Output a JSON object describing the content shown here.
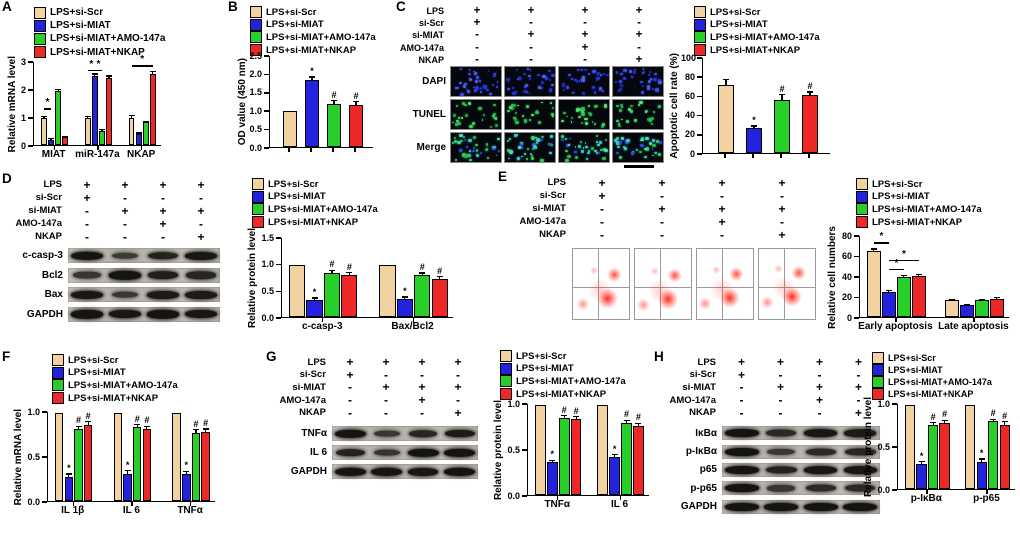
{
  "labels": {
    "a": "A",
    "b": "B",
    "c": "C",
    "d": "D",
    "e": "E",
    "f": "F",
    "g": "G",
    "h": "H"
  },
  "groups": [
    {
      "label": "LPS+si-Scr",
      "color": "#f2d2a0"
    },
    {
      "label": "LPS+si-MIAT",
      "color": "#2323dd"
    },
    {
      "label": "LPS+si-MIAT+AMO-147a",
      "color": "#28cf28"
    },
    {
      "label": "LPS+si-MIAT+NKAP",
      "color": "#ee2727"
    }
  ],
  "treatment": {
    "rows": [
      {
        "label": "LPS",
        "signs": [
          "+",
          "+",
          "+",
          "+"
        ]
      },
      {
        "label": "si-Scr",
        "signs": [
          "+",
          "-",
          "-",
          "-"
        ]
      },
      {
        "label": "si-MIAT",
        "signs": [
          "-",
          "+",
          "+",
          "+"
        ]
      },
      {
        "label": "AMO-147a",
        "signs": [
          "-",
          "-",
          "+",
          "-"
        ]
      },
      {
        "label": "NKAP",
        "signs": [
          "-",
          "-",
          "-",
          "+"
        ]
      }
    ]
  },
  "microscopy": {
    "row_labels": [
      "DAPI",
      "TUNEL",
      "Merge"
    ],
    "palettes": [
      [
        "#2436e0",
        "#3a4cf0",
        "#1b2cba",
        "#4d5ef2"
      ],
      [
        "#27c24b",
        "#39d95f",
        "#1ea83e",
        "#52e676"
      ],
      [
        "#35d058",
        "#2fd0c8",
        "#3347e8",
        "#45e0c8",
        "#28b84c"
      ]
    ],
    "dot_counts": [
      32,
      24,
      36
    ]
  },
  "flow": {
    "color": "#ff2a1e",
    "plot_count": 4
  },
  "blots": {
    "d": {
      "rows": [
        {
          "label": "c-casp-3",
          "lane_intensities": [
            1,
            0.45,
            0.8,
            0.95
          ]
        },
        {
          "label": "Bcl2",
          "lane_intensities": [
            0.55,
            1,
            0.85,
            0.75
          ]
        },
        {
          "label": "Bax",
          "lane_intensities": [
            0.95,
            0.5,
            0.9,
            0.9
          ]
        },
        {
          "label": "GAPDH",
          "lane_intensities": [
            1,
            0.95,
            1,
            0.95
          ]
        }
      ]
    },
    "g": {
      "rows": [
        {
          "label": "TNFα",
          "lane_intensities": [
            1,
            0.5,
            0.75,
            0.9
          ]
        },
        {
          "label": "IL 6",
          "lane_intensities": [
            0.8,
            0.55,
            1,
            1
          ]
        },
        {
          "label": "GAPDH",
          "lane_intensities": [
            1,
            1,
            0.95,
            1
          ]
        }
      ]
    },
    "h": {
      "rows": [
        {
          "label": "IκBα",
          "lane_intensities": [
            1,
            0.7,
            0.95,
            0.9
          ]
        },
        {
          "label": "p-IκBα",
          "lane_intensities": [
            1,
            0.5,
            0.7,
            0.75
          ]
        },
        {
          "label": "p65",
          "lane_intensities": [
            1,
            0.8,
            0.95,
            0.95
          ]
        },
        {
          "label": "p-p65",
          "lane_intensities": [
            1,
            0.5,
            0.7,
            0.7
          ]
        },
        {
          "label": "GAPDH",
          "lane_intensities": [
            1,
            1,
            1,
            1
          ]
        }
      ]
    }
  },
  "chart_data": [
    {
      "id": "A",
      "type": "bar",
      "title": "",
      "ylabel": "Relative mRNA level",
      "xlabel": "",
      "ylim": [
        0,
        3
      ],
      "yticks": [
        "0",
        "1",
        "2",
        "3"
      ],
      "categories": [
        "MIAT",
        "miR-147a",
        "NKAP"
      ],
      "series": [
        {
          "name": "LPS+si-Scr",
          "values": [
            1.0,
            1.0,
            1.0
          ],
          "errors": [
            0.06,
            0.05,
            0.08
          ],
          "ann": [
            "",
            "",
            ""
          ]
        },
        {
          "name": "LPS+si-MIAT",
          "values": [
            0.2,
            2.5,
            0.4
          ],
          "errors": [
            0.04,
            0.1,
            0.05
          ],
          "ann": [
            "",
            "",
            ""
          ]
        },
        {
          "name": "LPS+si-MIAT+AMO-147a",
          "values": [
            1.95,
            0.52,
            0.82
          ],
          "errors": [
            0.08,
            0.05,
            0.05
          ],
          "ann": [
            "",
            "",
            ""
          ]
        },
        {
          "name": "LPS+si-MIAT+NKAP",
          "values": [
            0.28,
            2.45,
            2.6
          ],
          "errors": [
            0.05,
            0.08,
            0.1
          ],
          "ann": [
            "",
            "",
            ""
          ]
        }
      ],
      "brackets": [
        {
          "cat": 0,
          "from": 0,
          "to": 1,
          "y": 1.35,
          "label": "*"
        },
        {
          "cat": 1,
          "from": 0,
          "to": 1,
          "y": 2.72,
          "label": "*"
        },
        {
          "cat": 1,
          "from": 1,
          "to": 2,
          "y": 2.72,
          "label": "*"
        },
        {
          "cat": 2,
          "from": 0,
          "to": 3,
          "y": 2.88,
          "label": "*"
        }
      ]
    },
    {
      "id": "B",
      "type": "bar",
      "title": "",
      "ylabel": "OD value (450 nm)",
      "xlabel": "",
      "ylim": [
        0,
        2.5
      ],
      "yticks": [
        "0.0",
        "0.5",
        "1.0",
        "1.5",
        "2.0",
        "2.5"
      ],
      "categories": [
        ""
      ],
      "series": [
        {
          "name": "LPS+si-Scr",
          "values": [
            1.0
          ],
          "errors": [
            0
          ],
          "ann": [
            ""
          ]
        },
        {
          "name": "LPS+si-MIAT",
          "values": [
            1.85
          ],
          "errors": [
            0.1
          ],
          "ann": [
            "*"
          ]
        },
        {
          "name": "LPS+si-MIAT+AMO-147a",
          "values": [
            1.2
          ],
          "errors": [
            0.09
          ],
          "ann": [
            "#"
          ]
        },
        {
          "name": "LPS+si-MIAT+NKAP",
          "values": [
            1.15
          ],
          "errors": [
            0.12
          ],
          "ann": [
            "#"
          ]
        }
      ]
    },
    {
      "id": "C",
      "type": "bar",
      "title": "",
      "ylabel": "Apoptotic cell rate (%)",
      "xlabel": "",
      "ylim": [
        0,
        100
      ],
      "yticks": [
        "0",
        "20",
        "40",
        "60",
        "80",
        "100"
      ],
      "categories": [
        ""
      ],
      "series": [
        {
          "name": "LPS+si-Scr",
          "values": [
            72
          ],
          "errors": [
            6
          ],
          "ann": [
            ""
          ]
        },
        {
          "name": "LPS+si-MIAT",
          "values": [
            26
          ],
          "errors": [
            3
          ],
          "ann": [
            "*"
          ]
        },
        {
          "name": "LPS+si-MIAT+AMO-147a",
          "values": [
            56
          ],
          "errors": [
            6
          ],
          "ann": [
            "#"
          ]
        },
        {
          "name": "LPS+si-MIAT+NKAP",
          "values": [
            61
          ],
          "errors": [
            4
          ],
          "ann": [
            "#"
          ]
        }
      ]
    },
    {
      "id": "D",
      "type": "bar",
      "title": "",
      "ylabel": "Relative protein level",
      "xlabel": "",
      "ylim": [
        0,
        1.5
      ],
      "yticks": [
        "0.0",
        "0.5",
        "1.0",
        "1.5"
      ],
      "categories": [
        "c-casp-3",
        "Bax/Bcl2"
      ],
      "series": [
        {
          "name": "LPS+si-Scr",
          "values": [
            1.0,
            1.0
          ],
          "errors": [
            0,
            0
          ],
          "ann": [
            "",
            ""
          ]
        },
        {
          "name": "LPS+si-MIAT",
          "values": [
            0.32,
            0.35
          ],
          "errors": [
            0.05,
            0.04
          ],
          "ann": [
            "*",
            "*"
          ]
        },
        {
          "name": "LPS+si-MIAT+AMO-147a",
          "values": [
            0.85,
            0.8
          ],
          "errors": [
            0.05,
            0.05
          ],
          "ann": [
            "#",
            "#"
          ]
        },
        {
          "name": "LPS+si-MIAT+NKAP",
          "values": [
            0.8,
            0.73
          ],
          "errors": [
            0.06,
            0.05
          ],
          "ann": [
            "#",
            "#"
          ]
        }
      ]
    },
    {
      "id": "E",
      "type": "bar",
      "title": "",
      "ylabel": "Relative cell numbers",
      "xlabel": "",
      "ylim": [
        0,
        80
      ],
      "yticks": [
        "0",
        "20",
        "40",
        "60",
        "80"
      ],
      "categories": [
        "Early apoptosis",
        "Late apoptosis"
      ],
      "series": [
        {
          "name": "LPS+si-Scr",
          "values": [
            66,
            17
          ],
          "errors": [
            2,
            1
          ],
          "ann": [
            "",
            ""
          ]
        },
        {
          "name": "LPS+si-MIAT",
          "values": [
            25,
            12
          ],
          "errors": [
            1.5,
            1
          ],
          "ann": [
            "",
            ""
          ]
        },
        {
          "name": "LPS+si-MIAT+AMO-147a",
          "values": [
            40,
            17
          ],
          "errors": [
            2,
            1
          ],
          "ann": [
            "",
            ""
          ]
        },
        {
          "name": "LPS+si-MIAT+NKAP",
          "values": [
            41,
            18
          ],
          "errors": [
            2,
            2
          ],
          "ann": [
            "",
            ""
          ]
        }
      ],
      "brackets": [
        {
          "cat": 0,
          "from": 0,
          "to": 1,
          "y": 74,
          "label": "*"
        },
        {
          "cat": 0,
          "from": 1,
          "to": 2,
          "y": 48,
          "label": "*"
        },
        {
          "cat": 0,
          "from": 1,
          "to": 3,
          "y": 57,
          "label": "*"
        }
      ]
    },
    {
      "id": "F",
      "type": "bar",
      "title": "",
      "ylabel": "Relative mRNA level",
      "xlabel": "",
      "ylim": [
        0,
        1.0
      ],
      "yticks": [
        "0.0",
        "0.5",
        "1.0"
      ],
      "categories": [
        "IL 1β",
        "IL 6",
        "TNFα"
      ],
      "series": [
        {
          "name": "LPS+si-Scr",
          "values": [
            1.0,
            1.0,
            1.0
          ],
          "errors": [
            0,
            0,
            0
          ],
          "ann": [
            "",
            "",
            ""
          ]
        },
        {
          "name": "LPS+si-MIAT",
          "values": [
            0.27,
            0.31,
            0.3
          ],
          "errors": [
            0.04,
            0.04,
            0.04
          ],
          "ann": [
            "*",
            "*",
            "*"
          ]
        },
        {
          "name": "LPS+si-MIAT+AMO-147a",
          "values": [
            0.82,
            0.84,
            0.77
          ],
          "errors": [
            0.03,
            0.03,
            0.04
          ],
          "ann": [
            "#",
            "#",
            "#"
          ]
        },
        {
          "name": "LPS+si-MIAT+NKAP",
          "values": [
            0.86,
            0.81,
            0.78
          ],
          "errors": [
            0.04,
            0.04,
            0.04
          ],
          "ann": [
            "#",
            "#",
            "#"
          ]
        }
      ]
    },
    {
      "id": "G",
      "type": "bar",
      "title": "",
      "ylabel": "Relative protein level",
      "xlabel": "",
      "ylim": [
        0,
        1.0
      ],
      "yticks": [
        "0.0",
        "0.5",
        "1.0"
      ],
      "categories": [
        "TNFα",
        "IL 6"
      ],
      "series": [
        {
          "name": "LPS+si-Scr",
          "values": [
            1.0,
            1.0
          ],
          "errors": [
            0,
            0
          ],
          "ann": [
            "",
            ""
          ]
        },
        {
          "name": "LPS+si-MIAT",
          "values": [
            0.36,
            0.42
          ],
          "errors": [
            0.03,
            0.03
          ],
          "ann": [
            "*",
            "*"
          ]
        },
        {
          "name": "LPS+si-MIAT+AMO-147a",
          "values": [
            0.85,
            0.8
          ],
          "errors": [
            0.03,
            0.03
          ],
          "ann": [
            "#",
            "#"
          ]
        },
        {
          "name": "LPS+si-MIAT+NKAP",
          "values": [
            0.84,
            0.76
          ],
          "errors": [
            0.03,
            0.04
          ],
          "ann": [
            "#",
            "#"
          ]
        }
      ]
    },
    {
      "id": "H",
      "type": "bar",
      "title": "",
      "ylabel": "Relative protein level",
      "xlabel": "",
      "ylim": [
        0,
        1.0
      ],
      "yticks": [
        "0.0",
        "0.5",
        "1.0"
      ],
      "categories": [
        "p-IκBα",
        "p-p65"
      ],
      "series": [
        {
          "name": "LPS+si-Scr",
          "values": [
            1.0,
            1.0
          ],
          "errors": [
            0,
            0
          ],
          "ann": [
            "",
            ""
          ]
        },
        {
          "name": "LPS+si-MIAT",
          "values": [
            0.3,
            0.32
          ],
          "errors": [
            0.03,
            0.04
          ],
          "ann": [
            "*",
            "*"
          ]
        },
        {
          "name": "LPS+si-MIAT+AMO-147a",
          "values": [
            0.76,
            0.8
          ],
          "errors": [
            0.03,
            0.03
          ],
          "ann": [
            "#",
            "#"
          ]
        },
        {
          "name": "LPS+si-MIAT+NKAP",
          "values": [
            0.78,
            0.76
          ],
          "errors": [
            0.04,
            0.04
          ],
          "ann": [
            "#",
            "#"
          ]
        }
      ]
    }
  ]
}
